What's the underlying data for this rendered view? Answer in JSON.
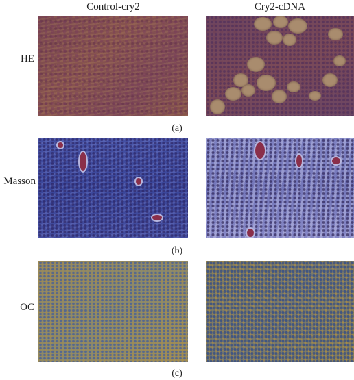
{
  "columns": [
    "Control-cry2",
    "Cry2-cDNA"
  ],
  "rows": [
    {
      "label": "HE",
      "panel": "(a)"
    },
    {
      "label": "Masson",
      "panel": "(b)"
    },
    {
      "label": "OC",
      "panel": "(c)"
    }
  ]
}
